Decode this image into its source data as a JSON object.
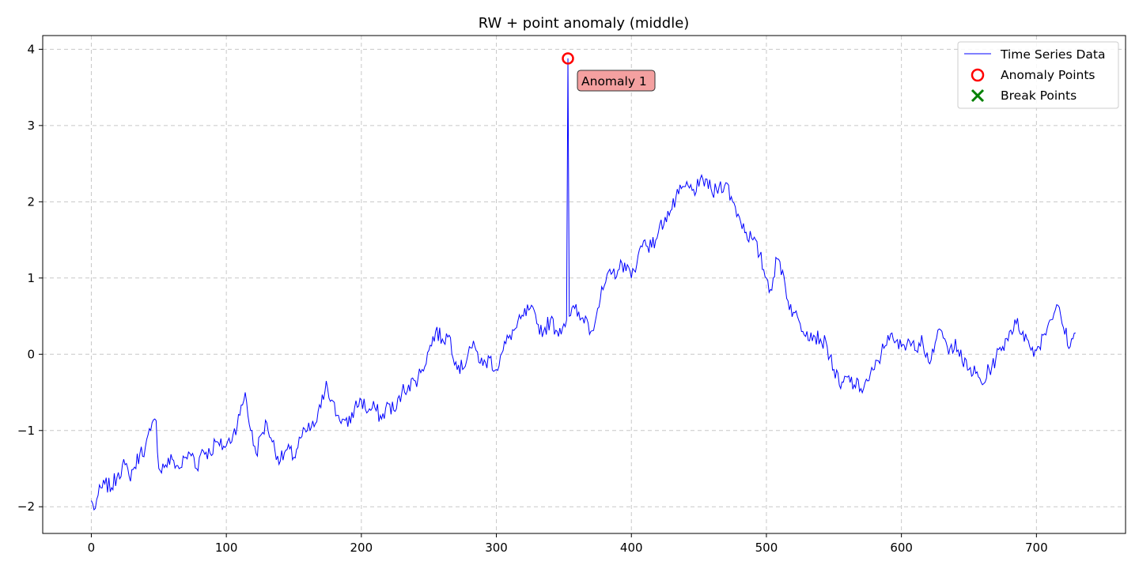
{
  "chart_data": {
    "type": "line",
    "title": "RW + point anomaly (middle)",
    "xlabel": "",
    "ylabel": "",
    "xlim": [
      -36,
      766
    ],
    "ylim": [
      -2.35,
      4.18
    ],
    "xticks": [
      0,
      100,
      200,
      300,
      400,
      500,
      600,
      700
    ],
    "yticks": [
      -2,
      -1,
      0,
      1,
      2,
      3,
      4
    ],
    "ytick_labels": [
      "−2",
      "−1",
      "0",
      "1",
      "2",
      "3",
      "4"
    ],
    "grid": true,
    "legend_position": "top-right",
    "legend": [
      "Time Series Data",
      "Anomaly Points",
      "Break Points"
    ],
    "colors": {
      "line": "#0000ff",
      "anomaly": "#ff0000",
      "break": "#008000",
      "annotation_bg": "#f4a0a0"
    },
    "series": [
      {
        "name": "Time Series Data",
        "knots": [
          [
            0,
            -1.92
          ],
          [
            2,
            -2.04
          ],
          [
            5,
            -1.85
          ],
          [
            10,
            -1.7
          ],
          [
            15,
            -1.75
          ],
          [
            20,
            -1.55
          ],
          [
            25,
            -1.45
          ],
          [
            28,
            -1.6
          ],
          [
            32,
            -1.48
          ],
          [
            36,
            -1.3
          ],
          [
            40,
            -1.22
          ],
          [
            44,
            -1.0
          ],
          [
            48,
            -0.87
          ],
          [
            50,
            -1.5
          ],
          [
            55,
            -1.45
          ],
          [
            60,
            -1.38
          ],
          [
            65,
            -1.5
          ],
          [
            70,
            -1.35
          ],
          [
            75,
            -1.3
          ],
          [
            78,
            -1.5
          ],
          [
            82,
            -1.25
          ],
          [
            88,
            -1.3
          ],
          [
            92,
            -1.15
          ],
          [
            95,
            -1.2
          ],
          [
            100,
            -1.2
          ],
          [
            105,
            -1.05
          ],
          [
            110,
            -0.8
          ],
          [
            114,
            -0.5
          ],
          [
            118,
            -1.0
          ],
          [
            122,
            -1.3
          ],
          [
            126,
            -1.05
          ],
          [
            130,
            -0.9
          ],
          [
            134,
            -1.15
          ],
          [
            140,
            -1.4
          ],
          [
            145,
            -1.25
          ],
          [
            150,
            -1.35
          ],
          [
            155,
            -1.1
          ],
          [
            160,
            -1.0
          ],
          [
            165,
            -0.95
          ],
          [
            170,
            -0.7
          ],
          [
            174,
            -0.35
          ],
          [
            178,
            -0.6
          ],
          [
            182,
            -0.8
          ],
          [
            186,
            -0.85
          ],
          [
            190,
            -0.95
          ],
          [
            195,
            -0.7
          ],
          [
            200,
            -0.6
          ],
          [
            205,
            -0.75
          ],
          [
            210,
            -0.7
          ],
          [
            215,
            -0.85
          ],
          [
            220,
            -0.65
          ],
          [
            225,
            -0.75
          ],
          [
            230,
            -0.5
          ],
          [
            235,
            -0.4
          ],
          [
            240,
            -0.35
          ],
          [
            245,
            -0.2
          ],
          [
            250,
            0.05
          ],
          [
            255,
            0.3
          ],
          [
            260,
            0.2
          ],
          [
            265,
            0.25
          ],
          [
            270,
            -0.1
          ],
          [
            275,
            -0.2
          ],
          [
            280,
            0.1
          ],
          [
            285,
            0.05
          ],
          [
            290,
            -0.15
          ],
          [
            295,
            -0.05
          ],
          [
            300,
            -0.2
          ],
          [
            305,
            0.05
          ],
          [
            310,
            0.25
          ],
          [
            315,
            0.35
          ],
          [
            320,
            0.5
          ],
          [
            325,
            0.6
          ],
          [
            330,
            0.4
          ],
          [
            335,
            0.3
          ],
          [
            340,
            0.45
          ],
          [
            345,
            0.3
          ],
          [
            350,
            0.4
          ],
          [
            352,
            0.45
          ],
          [
            353,
            3.88
          ],
          [
            354,
            0.5
          ],
          [
            358,
            0.6
          ],
          [
            362,
            0.45
          ],
          [
            366,
            0.5
          ],
          [
            370,
            0.3
          ],
          [
            375,
            0.6
          ],
          [
            380,
            0.9
          ],
          [
            385,
            1.05
          ],
          [
            390,
            1.1
          ],
          [
            395,
            1.2
          ],
          [
            400,
            1.0
          ],
          [
            405,
            1.3
          ],
          [
            410,
            1.5
          ],
          [
            415,
            1.4
          ],
          [
            420,
            1.6
          ],
          [
            425,
            1.8
          ],
          [
            430,
            1.9
          ],
          [
            435,
            2.1
          ],
          [
            440,
            2.2
          ],
          [
            445,
            2.15
          ],
          [
            450,
            2.2
          ],
          [
            455,
            2.3
          ],
          [
            460,
            2.1
          ],
          [
            465,
            2.2
          ],
          [
            470,
            2.25
          ],
          [
            475,
            2.0
          ],
          [
            480,
            1.8
          ],
          [
            485,
            1.6
          ],
          [
            490,
            1.5
          ],
          [
            495,
            1.3
          ],
          [
            500,
            1.0
          ],
          [
            503,
            0.85
          ],
          [
            508,
            1.25
          ],
          [
            512,
            1.1
          ],
          [
            516,
            0.7
          ],
          [
            520,
            0.55
          ],
          [
            525,
            0.4
          ],
          [
            530,
            0.3
          ],
          [
            535,
            0.25
          ],
          [
            540,
            0.2
          ],
          [
            545,
            0.1
          ],
          [
            550,
            -0.2
          ],
          [
            555,
            -0.45
          ],
          [
            560,
            -0.3
          ],
          [
            565,
            -0.4
          ],
          [
            570,
            -0.45
          ],
          [
            575,
            -0.35
          ],
          [
            580,
            -0.2
          ],
          [
            585,
            0.0
          ],
          [
            590,
            0.25
          ],
          [
            595,
            0.15
          ],
          [
            600,
            0.1
          ],
          [
            605,
            0.2
          ],
          [
            610,
            0.05
          ],
          [
            615,
            0.25
          ],
          [
            620,
            -0.1
          ],
          [
            625,
            0.15
          ],
          [
            630,
            0.3
          ],
          [
            635,
            0.0
          ],
          [
            640,
            0.2
          ],
          [
            645,
            -0.1
          ],
          [
            650,
            -0.2
          ],
          [
            655,
            -0.25
          ],
          [
            660,
            -0.4
          ],
          [
            665,
            -0.2
          ],
          [
            670,
            -0.05
          ],
          [
            675,
            0.1
          ],
          [
            680,
            0.3
          ],
          [
            685,
            0.4
          ],
          [
            690,
            0.3
          ],
          [
            695,
            0.1
          ],
          [
            700,
            0.05
          ],
          [
            705,
            0.25
          ],
          [
            710,
            0.45
          ],
          [
            715,
            0.65
          ],
          [
            720,
            0.35
          ],
          [
            725,
            0.1
          ],
          [
            729,
            0.28
          ]
        ]
      }
    ],
    "anomaly_points": [
      {
        "x": 353,
        "y": 3.88,
        "label": "Anomaly 1"
      }
    ],
    "break_points": []
  }
}
